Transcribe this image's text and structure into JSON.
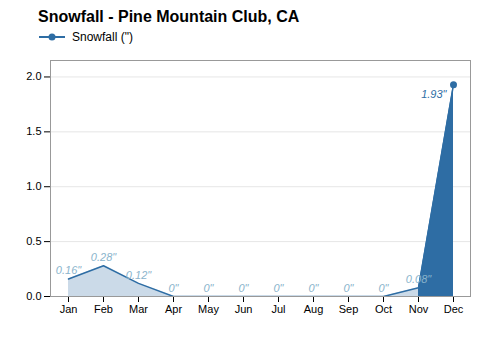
{
  "chart_data": {
    "type": "area",
    "title": "Snowfall - Pine Mountain Club, CA",
    "categories": [
      "Jan",
      "Feb",
      "Mar",
      "Apr",
      "May",
      "Jun",
      "Jul",
      "Aug",
      "Sep",
      "Oct",
      "Nov",
      "Dec"
    ],
    "series": [
      {
        "name": "Snowfall (\")",
        "color": "#2e6da4",
        "marker": "circle",
        "values": [
          0.16,
          0.28,
          0.12,
          0.0,
          0.0,
          0.0,
          0.0,
          0.0,
          0.0,
          0.0,
          0.08,
          1.93
        ],
        "value_labels": [
          "0.16\"",
          "0.28\"",
          "0.12\"",
          "0\"",
          "0\"",
          "0\"",
          "0\"",
          "0\"",
          "0\"",
          "0\"",
          "0.08\"",
          "1.93\""
        ]
      }
    ],
    "ylim": [
      0.0,
      2.15
    ],
    "yticks": [
      {
        "value": 0,
        "label": "0.0"
      },
      0.5,
      {
        "value": 1,
        "label": "1.0"
      },
      1.5,
      {
        "value": 2,
        "label": "2.0"
      }
    ],
    "grid": true,
    "legend": "upper left",
    "data_labels": true
  }
}
